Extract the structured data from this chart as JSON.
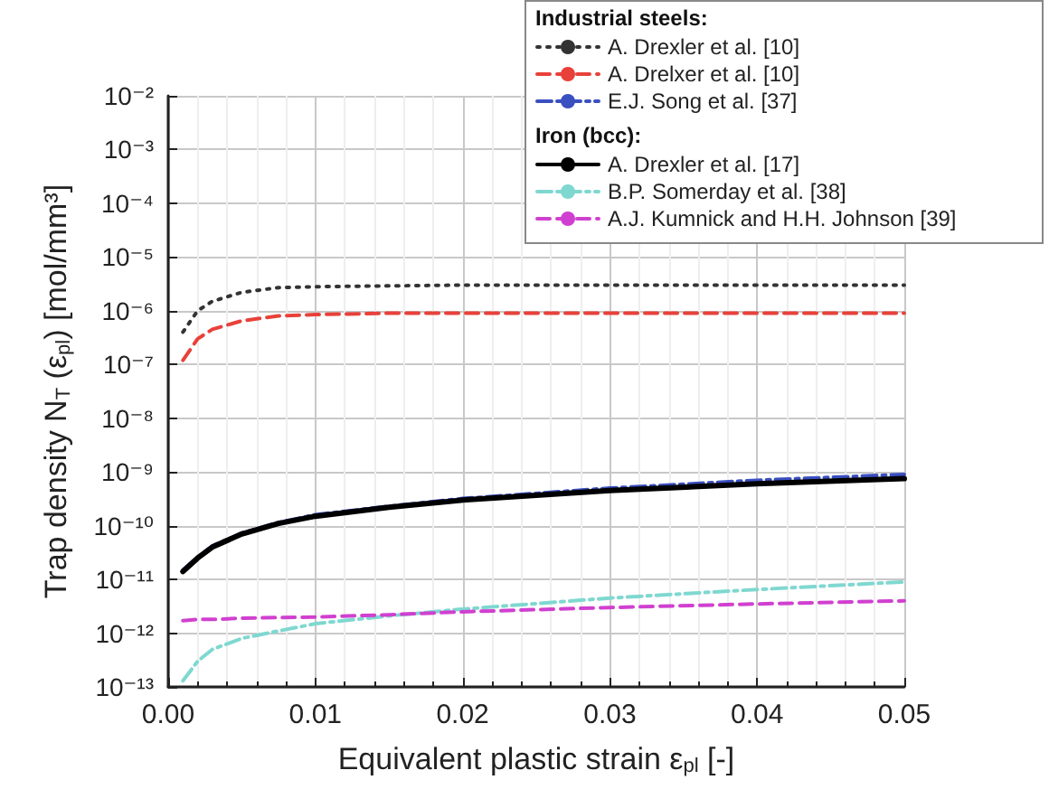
{
  "chart_data": {
    "type": "line",
    "xlabel": "Equivalent plastic strain ε$_{pl}$ [-]",
    "ylabel": "Trap density N$_{T}$ (ε$_{pl}$) [mol/mm³]",
    "annotations": [
      "Industrial steels:",
      "Iron (bcc):"
    ],
    "x": [
      0.001,
      0.002,
      0.003,
      0.005,
      0.0075,
      0.01,
      0.015,
      0.02,
      0.03,
      0.04,
      0.05
    ],
    "series": [
      {
        "name": "A. Drexler et al. [10]",
        "color": "#333333",
        "line_style": "dotted",
        "values": [
          4e-07,
          1e-06,
          1.5e-06,
          2.2e-06,
          2.7e-06,
          2.8e-06,
          2.9e-06,
          3e-06,
          3e-06,
          3e-06,
          3e-06
        ]
      },
      {
        "name": "A. Drelxer et al. [10]",
        "color": "#e8413a",
        "line_style": "dashed",
        "values": [
          1.2e-07,
          3e-07,
          4.5e-07,
          6.5e-07,
          8e-07,
          8.5e-07,
          9e-07,
          9e-07,
          9e-07,
          9e-07,
          9e-07
        ]
      },
      {
        "name": "E.J. Song et al. [37]",
        "color": "#3a4fc0",
        "line_style": "dashdot",
        "values": [
          1.5e-11,
          2.6e-11,
          4.2e-11,
          7.3e-11,
          1.15e-10,
          1.6e-10,
          2.3e-10,
          3.2e-10,
          5e-10,
          7e-10,
          9e-10
        ]
      },
      {
        "name": "A. Drexler et al. [17]",
        "color": "#000000",
        "line_style": "solid",
        "values": [
          1.4e-11,
          2.5e-11,
          4e-11,
          7e-11,
          1.1e-10,
          1.5e-10,
          2.2e-10,
          3e-10,
          4.5e-10,
          6e-10,
          7.5e-10
        ]
      },
      {
        "name": "B.P. Somerday et al. [38]",
        "color": "#7fd8d0",
        "line_style": "dashdot",
        "values": [
          1.3e-13,
          3e-13,
          5e-13,
          8e-13,
          1.1e-12,
          1.5e-12,
          2.1e-12,
          2.8e-12,
          4.5e-12,
          6.5e-12,
          9e-12
        ]
      },
      {
        "name": "A.J. Kumnick and H.H. Johnson [39]",
        "color": "#d040d0",
        "line_style": "dashed",
        "values": [
          1.7e-12,
          1.8e-12,
          1.8e-12,
          1.9e-12,
          1.95e-12,
          2e-12,
          2.2e-12,
          2.5e-12,
          3e-12,
          3.5e-12,
          4e-12
        ]
      }
    ],
    "xlim": [
      0,
      0.05
    ],
    "xticks": [
      {
        "value": 0,
        "label": "0.00"
      },
      {
        "value": 0.01,
        "label": "0.01"
      },
      {
        "value": 0.02,
        "label": "0.02"
      },
      {
        "value": 0.03,
        "label": "0.03"
      },
      {
        "value": 0.04,
        "label": "0.04"
      },
      {
        "value": 0.05,
        "label": "0.05"
      }
    ],
    "ylim": [
      1e-13,
      0.01
    ],
    "yticks": [
      {
        "value": 1e-13,
        "label": "10⁻¹³"
      },
      {
        "value": 1e-12,
        "label": "10⁻¹²"
      },
      {
        "value": 1e-11,
        "label": "10⁻¹¹"
      },
      {
        "value": 1e-10,
        "label": "10⁻¹⁰"
      },
      {
        "value": 1e-09,
        "label": "10⁻⁹"
      },
      {
        "value": 1e-08,
        "label": "10⁻⁸"
      },
      {
        "value": 1e-07,
        "label": "10⁻⁷"
      },
      {
        "value": 1e-06,
        "label": "10⁻⁶"
      },
      {
        "value": 1e-05,
        "label": "10⁻⁵"
      },
      {
        "value": 0.0001,
        "label": "10⁻⁴"
      },
      {
        "value": 0.001,
        "label": "10⁻³"
      },
      {
        "value": 0.01,
        "label": "10⁻²"
      }
    ],
    "log": "y",
    "grid": true,
    "legend": "top right",
    "marker": "none"
  }
}
